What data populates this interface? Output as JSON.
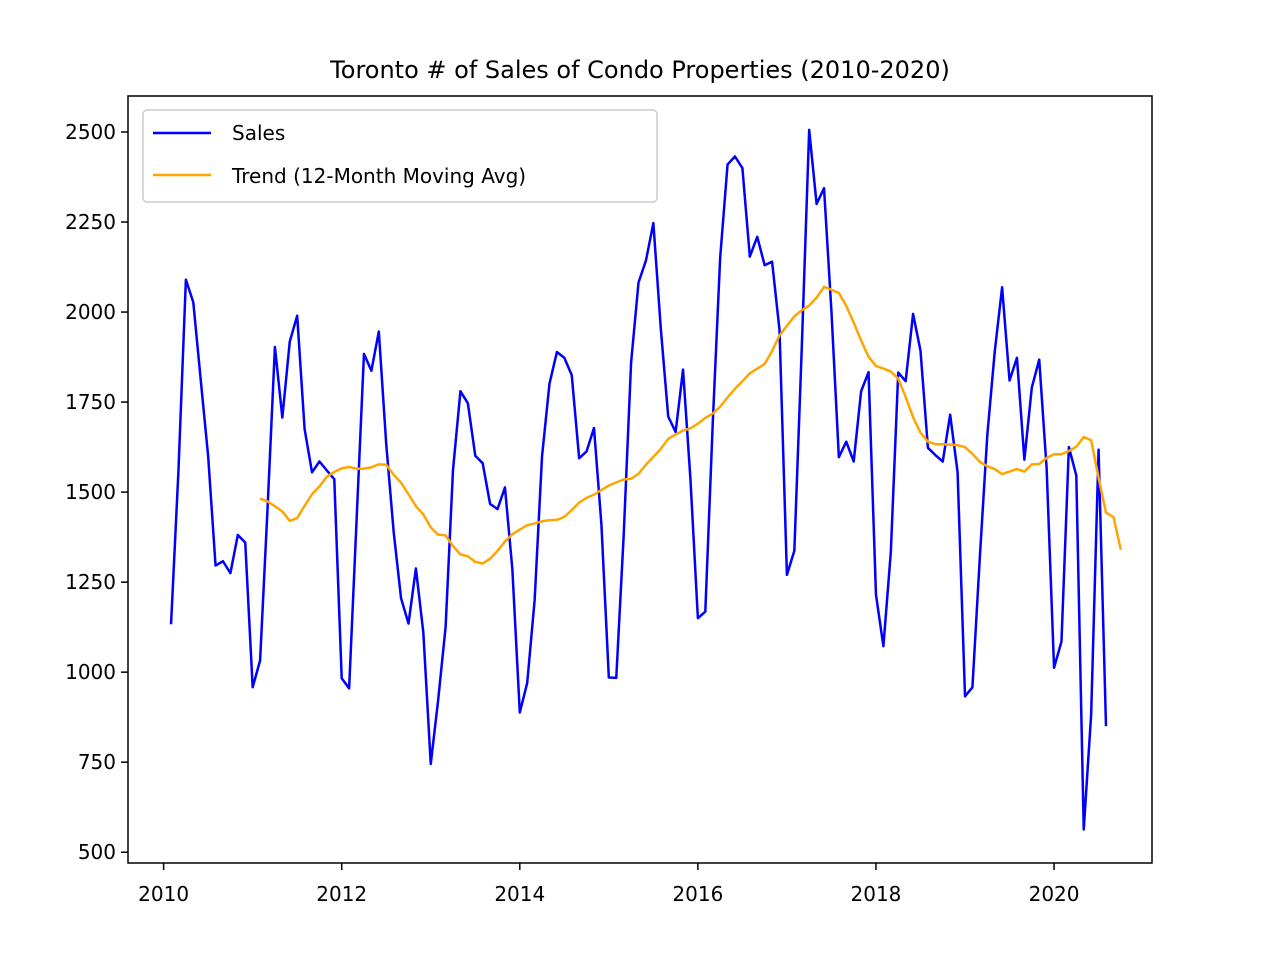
{
  "chart_data": {
    "type": "line",
    "title": "Toronto # of Sales of Condo Properties (2010-2020)",
    "xlabel": "",
    "ylabel": "",
    "xlim": [
      2009.6,
      2021.1
    ],
    "ylim": [
      470,
      2600
    ],
    "x_ticks": [
      2010,
      2012,
      2014,
      2016,
      2018,
      2020
    ],
    "y_ticks": [
      500,
      750,
      1000,
      1250,
      1500,
      1750,
      2000,
      2250,
      2500
    ],
    "grid": false,
    "legend_position": "top-left",
    "x_start": {
      "year": 2010,
      "month": 1
    },
    "series": [
      {
        "name": "Sales",
        "color": "#0000ff",
        "values": [
          1133,
          1560,
          2090,
          2027,
          1812,
          1600,
          1296,
          1308,
          1275,
          1381,
          1360,
          958,
          1032,
          1452,
          1903,
          1707,
          1918,
          1990,
          1675,
          1555,
          1585,
          1560,
          1536,
          983,
          955,
          1420,
          1884,
          1837,
          1946,
          1633,
          1390,
          1205,
          1135,
          1288,
          1110,
          745,
          923,
          1125,
          1562,
          1780,
          1747,
          1601,
          1580,
          1467,
          1453,
          1513,
          1285,
          888,
          970,
          1200,
          1600,
          1801,
          1889,
          1873,
          1825,
          1594,
          1613,
          1678,
          1410,
          985,
          984,
          1380,
          1860,
          2082,
          2143,
          2247,
          1955,
          1710,
          1667,
          1840,
          1535,
          1150,
          1168,
          1690,
          2150,
          2410,
          2432,
          2400,
          2154,
          2209,
          2130,
          2140,
          1950,
          1270,
          1337,
          1900,
          2506,
          2300,
          2344,
          2002,
          1597,
          1640,
          1585,
          1780,
          1833,
          1215,
          1072,
          1333,
          1832,
          1808,
          1995,
          1893,
          1623,
          1603,
          1585,
          1715,
          1555,
          933,
          958,
          1320,
          1657,
          1889,
          2069,
          1810,
          1873,
          1590,
          1790,
          1868,
          1566,
          1012,
          1085,
          1625,
          1546,
          563,
          882,
          1618,
          850
        ]
      },
      {
        "name": "Trend (12-Month Moving Avg)",
        "color": "#ffa500",
        "start_index": 12,
        "values": [
          1482,
          1474,
          1461,
          1446,
          1420,
          1428,
          1462,
          1494,
          1516,
          1543,
          1556,
          1566,
          1570,
          1565,
          1565,
          1569,
          1577,
          1576,
          1548,
          1526,
          1494,
          1461,
          1438,
          1402,
          1382,
          1380,
          1350,
          1327,
          1322,
          1306,
          1302,
          1315,
          1337,
          1363,
          1383,
          1396,
          1408,
          1413,
          1419,
          1422,
          1423,
          1431,
          1450,
          1471,
          1484,
          1493,
          1506,
          1518,
          1527,
          1535,
          1537,
          1551,
          1576,
          1598,
          1620,
          1648,
          1660,
          1671,
          1677,
          1690,
          1706,
          1718,
          1737,
          1763,
          1787,
          1808,
          1830,
          1843,
          1856,
          1892,
          1935,
          1962,
          1988,
          2005,
          2018,
          2040,
          2070,
          2062,
          2053,
          2017,
          1971,
          1921,
          1876,
          1850,
          1843,
          1835,
          1815,
          1764,
          1708,
          1665,
          1640,
          1633,
          1633,
          1632,
          1630,
          1625,
          1606,
          1584,
          1572,
          1564,
          1550,
          1557,
          1564,
          1557,
          1577,
          1578,
          1595,
          1605,
          1605,
          1614,
          1626,
          1653,
          1644,
          1540,
          1443,
          1431,
          1340
        ]
      }
    ]
  }
}
